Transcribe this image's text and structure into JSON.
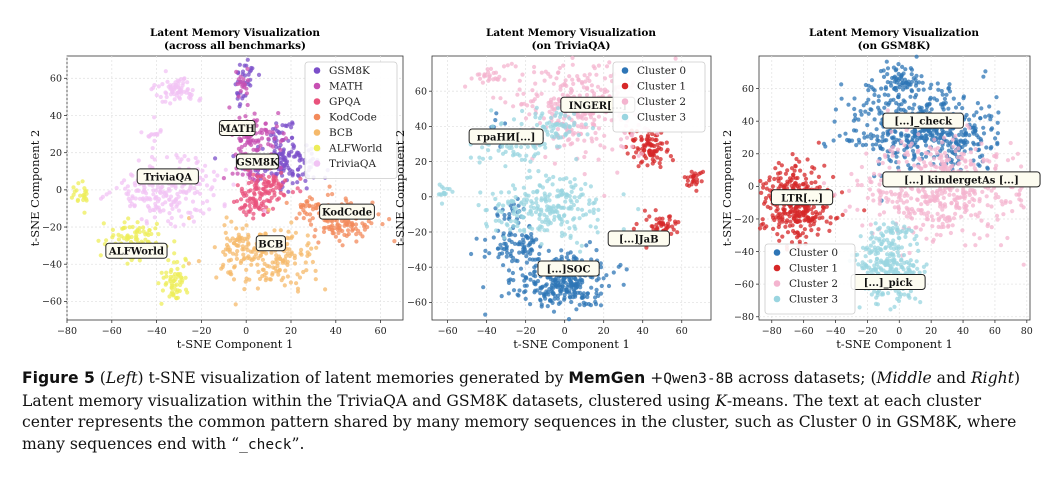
{
  "chart_data": [
    {
      "type": "scatter",
      "title_lines": [
        "Latent Memory Visualization",
        "(across all benchmarks)"
      ],
      "xlabel": "t-SNE Component 1",
      "ylabel": "t-SNE Component 2",
      "xlim": [
        -80,
        70
      ],
      "ylim": [
        -70,
        72
      ],
      "xticks": [
        -80,
        -60,
        -40,
        -20,
        0,
        20,
        40,
        60
      ],
      "yticks": [
        -60,
        -40,
        -20,
        0,
        20,
        40,
        60
      ],
      "grid": true,
      "legend_position": "top-right",
      "series": [
        {
          "name": "GSM8K",
          "color": "#7b4fc9",
          "clusters": [
            [
              15,
              15,
              11,
              7,
              170
            ],
            [
              1,
              63,
              3,
              4,
              20
            ],
            [
              -2,
              50,
              2,
              6,
              14
            ],
            [
              15,
              31,
              6,
              4,
              25
            ]
          ]
        },
        {
          "name": "MATH",
          "color": "#c74fb2",
          "clusters": [
            [
              4,
              30,
              8,
              7,
              85
            ],
            [
              3,
              12,
              6,
              6,
              45
            ],
            [
              -2,
              58,
              2,
              6,
              18
            ]
          ]
        },
        {
          "name": "GPQA",
          "color": "#e9527c",
          "clusters": [
            [
              8,
              0,
              8,
              7,
              90
            ],
            [
              4,
              -8,
              6,
              5,
              40
            ]
          ]
        },
        {
          "name": "KodCode",
          "color": "#f38a5b",
          "clusters": [
            [
              42,
              -15,
              11,
              8,
              140
            ],
            [
              28,
              -9,
              5,
              4,
              20
            ]
          ]
        },
        {
          "name": "BCB",
          "color": "#f5b96b",
          "clusters": [
            [
              10,
              -37,
              15,
              11,
              200
            ],
            [
              -4,
              -28,
              4,
              6,
              25
            ]
          ]
        },
        {
          "name": "ALFWorld",
          "color": "#eded5a",
          "clusters": [
            [
              -50,
              -28,
              9,
              7,
              100
            ],
            [
              -32,
              -48,
              4,
              9,
              60
            ],
            [
              -74,
              -2,
              3,
              5,
              22
            ]
          ]
        },
        {
          "name": "TriviaQA",
          "color": "#f1c3f4",
          "clusters": [
            [
              -35,
              0,
              16,
              11,
              220
            ],
            [
              -31,
              54,
              6,
              4,
              70
            ],
            [
              -42,
              30,
              3,
              4,
              14
            ]
          ]
        }
      ],
      "cluster_labels": [
        {
          "text": "MATH",
          "x": -4,
          "y": 33
        },
        {
          "text": "GSM8K",
          "x": 5,
          "y": 15
        },
        {
          "text": "TriviaQA",
          "x": -35,
          "y": 7
        },
        {
          "text": "KodCode",
          "x": 45,
          "y": -12
        },
        {
          "text": "BCB",
          "x": 11,
          "y": -29
        },
        {
          "text": "ALFWorld",
          "x": -49,
          "y": -33
        }
      ]
    },
    {
      "type": "scatter",
      "title_lines": [
        "Latent Memory Visualization",
        "(on TriviaQA)"
      ],
      "xlabel": "t-SNE Component 1",
      "ylabel": "t-SNE Component 2",
      "xlim": [
        -68,
        75
      ],
      "ylim": [
        -70,
        80
      ],
      "xticks": [
        -60,
        -40,
        -20,
        0,
        20,
        40,
        60
      ],
      "yticks": [
        -60,
        -40,
        -20,
        0,
        20,
        40,
        60
      ],
      "grid": true,
      "legend_position": "top-right",
      "series": [
        {
          "name": "Cluster 0",
          "color": "#2e75b6",
          "clusters": [
            [
              -2,
              -48,
              16,
              11,
              300
            ],
            [
              -25,
              -28,
              10,
              6,
              80
            ],
            [
              -27,
              -10,
              6,
              5,
              25
            ],
            [
              -34,
              38,
              3,
              4,
              15
            ]
          ]
        },
        {
          "name": "Cluster 1",
          "color": "#d62728",
          "clusters": [
            [
              42,
              28,
              7,
              7,
              90
            ],
            [
              48,
              -17,
              7,
              5,
              50
            ],
            [
              66,
              10,
              3,
              3,
              25
            ]
          ]
        },
        {
          "name": "Cluster 2",
          "color": "#f4b4cf",
          "clusters": [
            [
              8,
              50,
              24,
              18,
              320
            ],
            [
              -38,
              69,
              6,
              3,
              25
            ]
          ]
        },
        {
          "name": "Cluster 3",
          "color": "#9ad5e0",
          "clusters": [
            [
              -8,
              -7,
              22,
              12,
              230
            ],
            [
              -24,
              31,
              12,
              9,
              90
            ],
            [
              -5,
              40,
              10,
              8,
              60
            ],
            [
              -62,
              2,
              3,
              3,
              15
            ]
          ]
        }
      ],
      "cluster_labels": [
        {
          "text": "INGER[...]",
          "x": 17,
          "y": 52
        },
        {
          "text": "граНИ[...]",
          "x": -30,
          "y": 34
        },
        {
          "text": "[...]JaB",
          "x": 38,
          "y": -24
        },
        {
          "text": "[...]SOC",
          "x": 2,
          "y": -41
        }
      ]
    },
    {
      "type": "scatter",
      "title_lines": [
        "Latent Memory Visualization",
        "(on GSM8K)"
      ],
      "xlabel": "t-SNE Component 1",
      "ylabel": "t-SNE Component 2",
      "xlim": [
        -88,
        82
      ],
      "ylim": [
        -82,
        80
      ],
      "xticks": [
        -80,
        -60,
        -40,
        -20,
        0,
        20,
        40,
        60,
        80
      ],
      "yticks": [
        -80,
        -60,
        -40,
        -20,
        0,
        20,
        40,
        60
      ],
      "grid": true,
      "legend_position": "bottom-left",
      "series": [
        {
          "name": "Cluster 0",
          "color": "#2e75b6",
          "clusters": [
            [
              12,
              36,
              30,
              18,
              480
            ],
            [
              0,
              65,
              8,
              6,
              60
            ],
            [
              38,
              28,
              15,
              10,
              60
            ]
          ]
        },
        {
          "name": "Cluster 1",
          "color": "#d62728",
          "clusters": [
            [
              -65,
              -10,
              14,
              15,
              360
            ]
          ]
        },
        {
          "name": "Cluster 2",
          "color": "#f4b4cf",
          "clusters": [
            [
              25,
              -1,
              32,
              20,
              520
            ]
          ]
        },
        {
          "name": "Cluster 3",
          "color": "#9ad5e0",
          "clusters": [
            [
              -6,
              -52,
              13,
              14,
              260
            ],
            [
              -2,
              -28,
              8,
              6,
              40
            ]
          ]
        }
      ],
      "cluster_labels": [
        {
          "text": "[...]_check",
          "x": 15,
          "y": 40
        },
        {
          "text": "LTR[...]",
          "x": -61,
          "y": -7
        },
        {
          "text": "[...] kindergetAs [...]",
          "x": 39,
          "y": 4
        },
        {
          "text": "[...]_pick",
          "x": -7,
          "y": -59
        }
      ]
    }
  ],
  "caption": {
    "label": "Figure 5",
    "parts": [
      {
        "t": " ("
      },
      {
        "t": "Left",
        "style": "i"
      },
      {
        "t": ") t-SNE visualization of latent memories generated by "
      },
      {
        "t": "MemGen",
        "style": "memgen"
      },
      {
        "t": " +"
      },
      {
        "t": "Qwen3-8B",
        "style": "mono"
      },
      {
        "t": " across datasets; ("
      },
      {
        "t": "Middle",
        "style": "i"
      },
      {
        "t": " and "
      },
      {
        "t": "Right",
        "style": "i"
      },
      {
        "t": ") Latent memory visualization within the TriviaQA and GSM8K datasets, clustered using "
      },
      {
        "t": "K",
        "style": "i"
      },
      {
        "t": "-means. The text at each cluster center represents the common pattern shared by many memory sequences in the cluster, such as Cluster 0 in GSM8K, where many sequences end with “"
      },
      {
        "t": "_check",
        "style": "mono"
      },
      {
        "t": "”."
      }
    ]
  }
}
